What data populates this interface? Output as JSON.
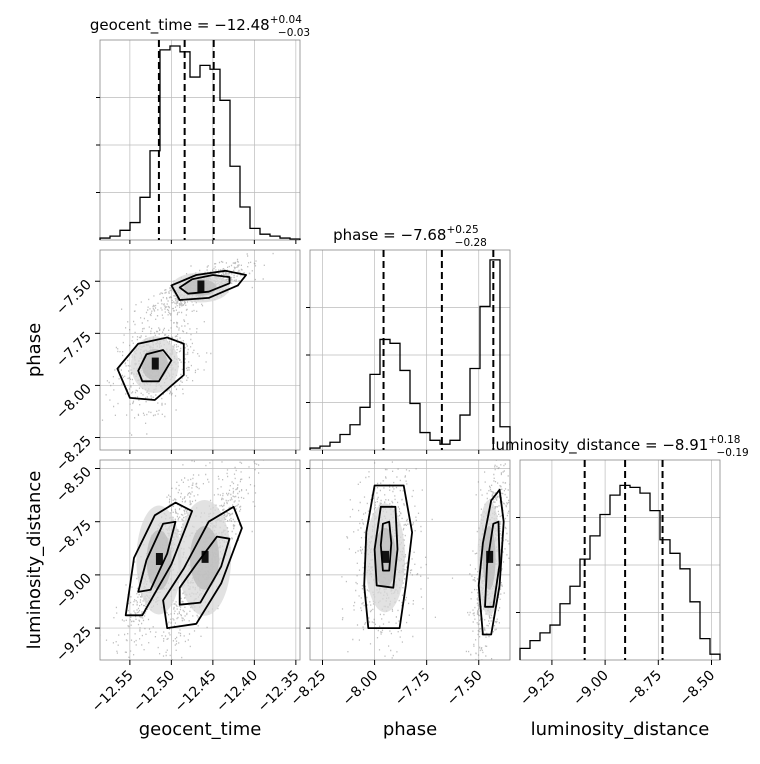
{
  "chart_data": {
    "type": "corner",
    "parameters": [
      "geocent_time",
      "phase",
      "luminosity_distance"
    ],
    "axis_labels": [
      "geocent_time",
      "phase",
      "luminosity_distance"
    ],
    "titles": [
      {
        "label": "geocent_time",
        "median": "−12.48",
        "plus": "+0.04",
        "minus": "−0.03"
      },
      {
        "label": "phase",
        "median": "−7.68",
        "plus": "+0.25",
        "minus": "−0.28"
      },
      {
        "label": "luminosity_distance",
        "median": "−8.91",
        "plus": "+0.18",
        "minus": "−0.19"
      }
    ],
    "ranges": {
      "geocent_time": [
        -12.586,
        -12.345
      ],
      "phase": [
        -8.31,
        -7.35
      ],
      "luminosity_distance": [
        -9.4,
        -8.46
      ]
    },
    "ticks": {
      "geocent_time": [
        {
          "v": -12.55,
          "label": "−12.55"
        },
        {
          "v": -12.5,
          "label": "−12.50"
        },
        {
          "v": -12.45,
          "label": "−12.45"
        },
        {
          "v": -12.4,
          "label": "−12.40"
        },
        {
          "v": -12.35,
          "label": "−12.35"
        }
      ],
      "phase": [
        {
          "v": -8.25,
          "label": "−8.25"
        },
        {
          "v": -8.0,
          "label": "−8.00"
        },
        {
          "v": -7.75,
          "label": "−7.75"
        },
        {
          "v": -7.5,
          "label": "−7.50"
        }
      ],
      "luminosity_distance": [
        {
          "v": -9.25,
          "label": "−9.25"
        },
        {
          "v": -9.0,
          "label": "−9.00"
        },
        {
          "v": -8.75,
          "label": "−8.75"
        },
        {
          "v": -8.5,
          "label": "−8.50"
        }
      ]
    },
    "quantiles": {
      "geocent_time": [
        -12.515,
        -12.484,
        -12.449
      ],
      "phase": [
        -7.957,
        -7.677,
        -7.43
      ],
      "luminosity_distance": [
        -9.096,
        -8.906,
        -8.73
      ]
    },
    "histograms": {
      "geocent_time": [
        0.01,
        0.02,
        0.05,
        0.09,
        0.22,
        0.46,
        0.98,
        1.0,
        0.97,
        0.84,
        0.9,
        0.88,
        0.72,
        0.38,
        0.17,
        0.06,
        0.03,
        0.02,
        0.01,
        0.005
      ],
      "phase": [
        0.01,
        0.02,
        0.04,
        0.08,
        0.13,
        0.22,
        0.39,
        0.57,
        0.55,
        0.41,
        0.24,
        0.09,
        0.05,
        0.03,
        0.05,
        0.18,
        0.42,
        0.74,
        0.98,
        0.12
      ],
      "luminosity_distance": [
        0.06,
        0.1,
        0.14,
        0.18,
        0.29,
        0.38,
        0.52,
        0.64,
        0.75,
        0.85,
        0.9,
        0.89,
        0.86,
        0.77,
        0.62,
        0.55,
        0.47,
        0.3,
        0.11,
        0.03
      ]
    },
    "grid": true
  }
}
